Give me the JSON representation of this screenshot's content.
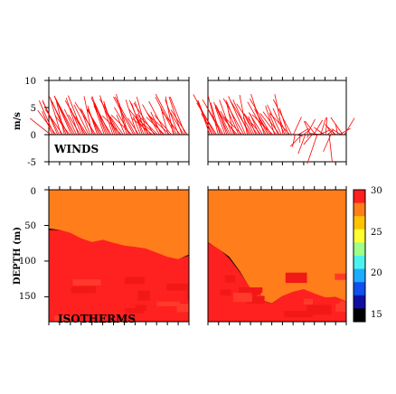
{
  "chart_data": [
    {
      "type": "vector",
      "panel_label": "WINDS",
      "ylabel": "m/s",
      "ylim": [
        -5,
        10
      ],
      "y_ticks": [
        "10",
        "5",
        "0",
        "-5"
      ],
      "colors": {
        "vectors": "#ff0000"
      },
      "series": [
        {
          "name": "left",
          "speed_range": [
            0,
            8
          ],
          "direction": "north-westward",
          "points": 80
        },
        {
          "name": "right",
          "speed_range": [
            -5,
            8
          ],
          "direction": "north-westward, turning southward and scattered late in record",
          "points": 80
        }
      ]
    },
    {
      "type": "heatmap",
      "panel_label": "ISOTHERMS",
      "ylabel": "DEPTH (m)",
      "ylim": [
        185,
        0
      ],
      "y_ticks": [
        "0",
        "50",
        "100",
        "150"
      ],
      "colorbar": {
        "ticks": [
          "30",
          "25",
          "20",
          "15"
        ],
        "range": [
          14,
          30
        ],
        "colors": [
          "#ff2020",
          "#ff7d1a",
          "#ffc400",
          "#ffff33",
          "#9eff8a",
          "#4cf2ee",
          "#1cacff",
          "#0f50ee",
          "#1010a0",
          "#000000"
        ]
      },
      "left_panel_thermocline_depth_m": [
        55,
        57,
        60,
        68,
        72,
        70,
        75,
        78,
        80,
        82,
        88,
        95,
        98,
        92
      ],
      "right_panel_thermocline_depth_m": [
        75,
        82,
        95,
        115,
        138,
        155,
        160,
        150,
        142,
        140,
        145,
        150,
        152,
        155
      ]
    }
  ]
}
